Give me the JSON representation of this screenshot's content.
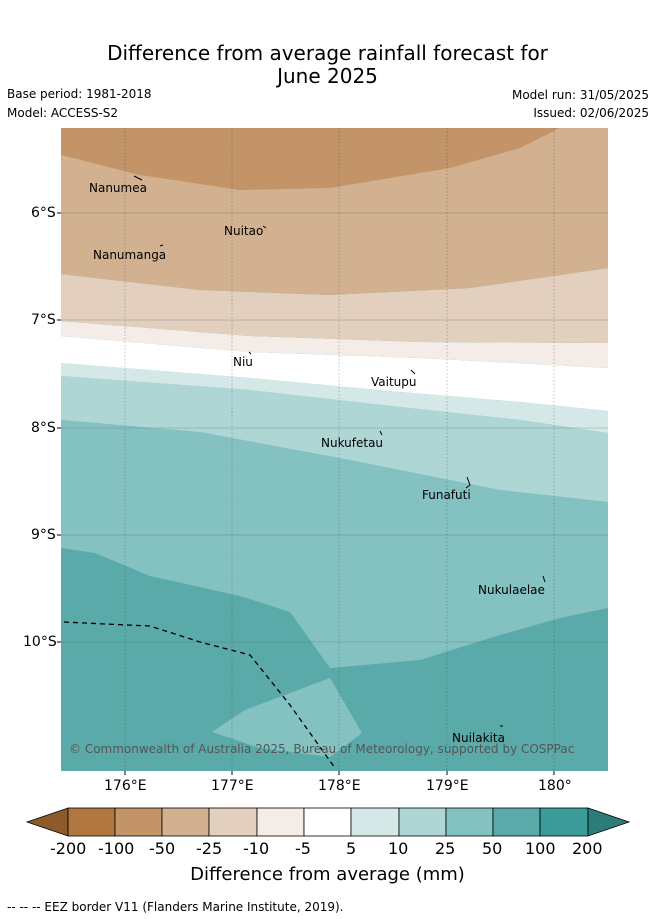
{
  "title_line1": "Difference from average rainfall forecast for",
  "title_line2": "June 2025",
  "base_period": "Base period: 1981-2018",
  "model": "Model: ACCESS-S2",
  "model_run": "Model run: 31/05/2025",
  "issued": "Issued: 02/06/2025",
  "copyright": "© Commonwealth of Australia 2025, Bureau of Meteorology, supported by COSPPac",
  "lat_labels": [
    "6°S",
    "7°S",
    "8°S",
    "9°S",
    "10°S"
  ],
  "lon_labels": [
    "176°E",
    "177°E",
    "178°E",
    "179°E",
    "180°"
  ],
  "places": [
    "Nanumea",
    "Nuitao",
    "Nanumanga",
    "Niu",
    "Vaitupu",
    "Nukufetau",
    "Funafuti",
    "Nukulaelae",
    "Nuilakita"
  ],
  "colorbar": {
    "labels": [
      "-200",
      "-100",
      "-50",
      "-25",
      "-10",
      "-5",
      "5",
      "10",
      "25",
      "50",
      "100",
      "200"
    ],
    "colors": [
      "#8c5a2b",
      "#b07840",
      "#c29468",
      "#d2b190",
      "#e3cfbd",
      "#f3ece7",
      "#ffffff",
      "#d4e8e7",
      "#aed6d5",
      "#84c2c1",
      "#5aaaaa",
      "#3a9b98",
      "#2e7c7a"
    ],
    "title": "Difference from average (mm)"
  },
  "footnote": "--  --  -- EEZ border V11 (Flanders Marine Institute, 2019)."
}
